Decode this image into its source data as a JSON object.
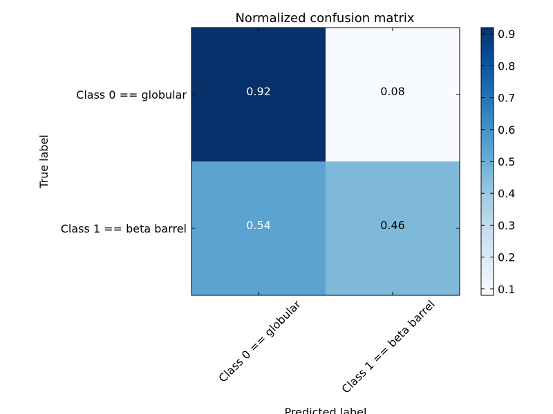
{
  "chart_data": {
    "type": "heatmap",
    "title": "Normalized confusion matrix",
    "xlabel": "Predicted label",
    "ylabel": "True label",
    "x_categories": [
      "Class 0 == globular",
      "Class 1 == beta barrel"
    ],
    "y_categories": [
      "Class 0 == globular",
      "Class 1 == beta barrel"
    ],
    "values": [
      [
        0.92,
        0.08
      ],
      [
        0.54,
        0.46
      ]
    ],
    "cell_labels": [
      [
        "0.92",
        "0.08"
      ],
      [
        "0.54",
        "0.46"
      ]
    ],
    "colormap": "Blues",
    "colorbar": {
      "range": [
        0.08,
        0.92
      ],
      "ticks": [
        0.1,
        0.2,
        0.3,
        0.4,
        0.5,
        0.6,
        0.7,
        0.8,
        0.9
      ],
      "tick_labels": [
        "0.1",
        "0.2",
        "0.3",
        "0.4",
        "0.5",
        "0.6",
        "0.7",
        "0.8",
        "0.9"
      ]
    },
    "colors": {
      "cell_text_dark_bg": "#ffffff",
      "cell_text_light_bg": "#000000"
    }
  }
}
